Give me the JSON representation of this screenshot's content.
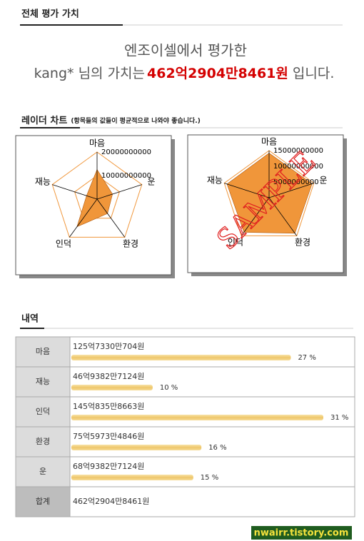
{
  "header": {
    "title": "전체 평가 가치"
  },
  "summary": {
    "line1": "엔조이셀에서 평가한",
    "prefix": "kang* 님의 가치는",
    "amount": "462억2904만8461원",
    "suffix": "입니다."
  },
  "radar": {
    "title": "레이더 차트",
    "note": "(항목들의 값들이 평균적으로 나와야 좋습니다.)",
    "charts": [
      {
        "type": "radar",
        "axes": [
          "마음",
          "운",
          "환경",
          "인덕",
          "재능"
        ],
        "lim": [
          0,
          20000000000
        ],
        "ticks": [
          10000000000,
          20000000000
        ],
        "values": [
          12573300704,
          6893827124,
          7559734846,
          14508358663,
          4693827124
        ],
        "color": "#f0963a",
        "grid_color": "#f0963a"
      },
      {
        "type": "radar",
        "axes": [
          "마음",
          "운",
          "환경",
          "인덕",
          "재능"
        ],
        "lim": [
          0,
          15000000000
        ],
        "ticks": [
          5000000000,
          10000000000,
          15000000000
        ],
        "values": [
          14200000000,
          14400000000,
          14000000000,
          13600000000,
          14100000000
        ],
        "color": "#f0963a",
        "grid_color": "#f0963a",
        "watermark": "SAMPLE"
      }
    ]
  },
  "breakdown": {
    "title": "내역",
    "rows": [
      {
        "name": "마음",
        "amount": "125억7330만704원",
        "percent": 27,
        "percent_label": "27 %"
      },
      {
        "name": "재능",
        "amount": "46억9382만7124원",
        "percent": 10,
        "percent_label": "10 %"
      },
      {
        "name": "인덕",
        "amount": "145억835만8663원",
        "percent": 31,
        "percent_label": "31 %"
      },
      {
        "name": "환경",
        "amount": "75억5973만4846원",
        "percent": 16,
        "percent_label": "16 %"
      },
      {
        "name": "운",
        "amount": "68억9382만7124원",
        "percent": 15,
        "percent_label": "15 %"
      }
    ],
    "total": {
      "name": "합계",
      "amount": "462억2904만8461원"
    }
  },
  "footer": {
    "badge": "nwairr.tistory.com"
  }
}
